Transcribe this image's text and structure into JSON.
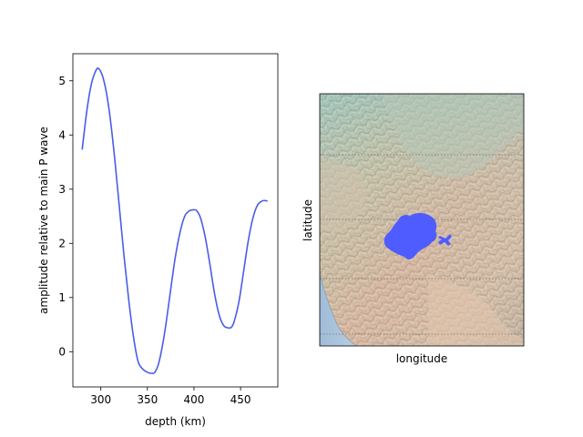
{
  "chart_data": [
    {
      "type": "line",
      "xlabel": "depth (km)",
      "ylabel": "amplitude relative to main P wave",
      "xlim": [
        270,
        490
      ],
      "ylim": [
        -0.65,
        5.5
      ],
      "xticks": [
        300,
        350,
        400,
        450
      ],
      "yticks": [
        0,
        1,
        2,
        3,
        4,
        5
      ],
      "grid": false,
      "series": [
        {
          "color": "#4a5ce8",
          "x": [
            280,
            285,
            290,
            295,
            298,
            302,
            306,
            310,
            315,
            320,
            325,
            330,
            335,
            340,
            345,
            350,
            355,
            358,
            362,
            366,
            370,
            375,
            380,
            385,
            390,
            395,
            400,
            403,
            407,
            412,
            417,
            422,
            427,
            432,
            437,
            440,
            443,
            448,
            453,
            458,
            463,
            468,
            473,
            476,
            479
          ],
          "y": [
            3.73,
            4.45,
            4.95,
            5.2,
            5.22,
            5.08,
            4.78,
            4.32,
            3.55,
            2.65,
            1.75,
            0.95,
            0.28,
            -0.18,
            -0.32,
            -0.38,
            -0.4,
            -0.38,
            -0.22,
            0.1,
            0.52,
            1.15,
            1.75,
            2.2,
            2.5,
            2.6,
            2.62,
            2.6,
            2.47,
            2.12,
            1.62,
            1.08,
            0.68,
            0.48,
            0.44,
            0.45,
            0.55,
            0.9,
            1.45,
            2.02,
            2.45,
            2.7,
            2.78,
            2.79,
            2.78
          ]
        }
      ]
    },
    {
      "type": "map",
      "xlabel": "longitude",
      "ylabel": "latitude",
      "grid": true,
      "grid_style": "dotted-latitude-lines",
      "region_color": "#4f5cff",
      "basemap": "shaded-relief"
    }
  ]
}
